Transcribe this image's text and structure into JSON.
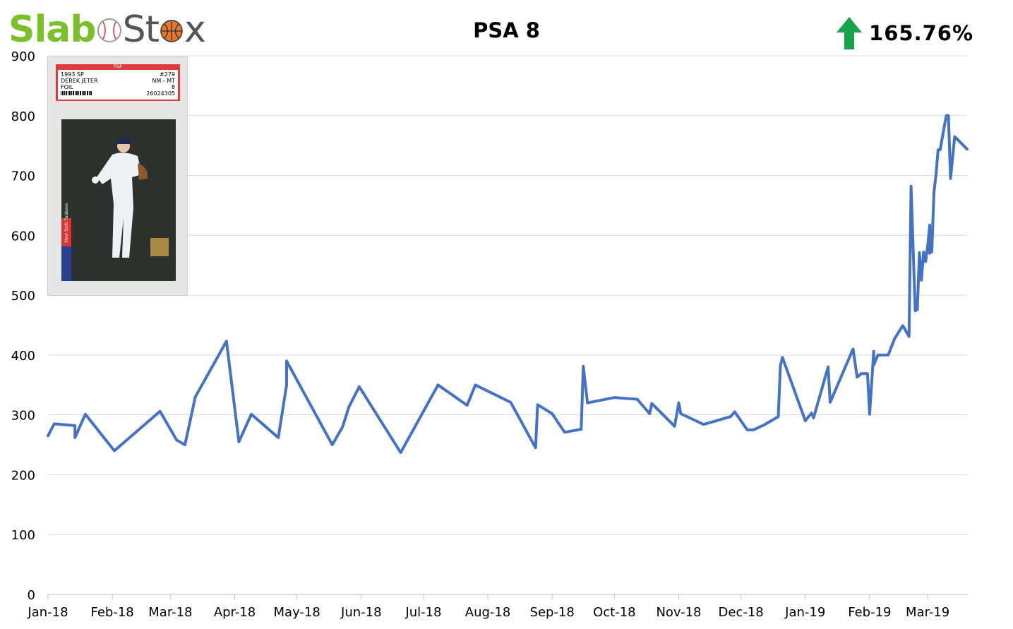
{
  "logo": {
    "part1": "Slab",
    "part2": "St",
    "part3": "x"
  },
  "title": "PSA 8",
  "change": {
    "value": "165.76%",
    "direction": "up",
    "color": "#1aa34a"
  },
  "card_image": {
    "icon": "graded-card-image",
    "label_header": "PSA",
    "label_left": [
      "1993 SP",
      "DEREK JETER",
      "FOIL"
    ],
    "label_right": [
      "#279",
      "NM - MT",
      "8",
      "26024305"
    ],
    "team_text": "New York Yankees"
  },
  "colors": {
    "line": "#4472c4",
    "grid": "#d9d9d9",
    "logo_green": "#7bbf2a",
    "logo_gray": "#555555",
    "arrow": "#1aa34a"
  },
  "chart_data": {
    "type": "line",
    "title": "PSA 8",
    "xlabel": "",
    "ylabel": "",
    "ylim": [
      0,
      900
    ],
    "yticks": [
      0,
      100,
      200,
      300,
      400,
      500,
      600,
      700,
      800,
      900
    ],
    "x_axis_type": "date",
    "x_range": [
      "2018-01-01",
      "2019-03-20"
    ],
    "xticks": [
      {
        "date": "2018-01-01",
        "label": "Jan-18"
      },
      {
        "date": "2018-02-01",
        "label": "Feb-18"
      },
      {
        "date": "2018-03-01",
        "label": "Mar-18"
      },
      {
        "date": "2018-04-01",
        "label": "Apr-18"
      },
      {
        "date": "2018-05-01",
        "label": "May-18"
      },
      {
        "date": "2018-06-01",
        "label": "Jun-18"
      },
      {
        "date": "2018-07-01",
        "label": "Jul-18"
      },
      {
        "date": "2018-08-01",
        "label": "Aug-18"
      },
      {
        "date": "2018-09-01",
        "label": "Sep-18"
      },
      {
        "date": "2018-10-01",
        "label": "Oct-18"
      },
      {
        "date": "2018-11-01",
        "label": "Nov-18"
      },
      {
        "date": "2018-12-01",
        "label": "Dec-18"
      },
      {
        "date": "2019-01-01",
        "label": "Jan-19"
      },
      {
        "date": "2019-02-01",
        "label": "Feb-19"
      },
      {
        "date": "2019-03-01",
        "label": "Mar-19"
      }
    ],
    "grid": true,
    "legend": "none",
    "series": [
      {
        "points": [
          [
            "2018-01-01",
            265
          ],
          [
            "2018-01-04",
            285
          ],
          [
            "2018-01-14",
            282
          ],
          [
            "2018-01-14",
            262
          ],
          [
            "2018-01-19",
            301
          ],
          [
            "2018-02-02",
            240
          ],
          [
            "2018-02-24",
            306
          ],
          [
            "2018-03-04",
            258
          ],
          [
            "2018-03-08",
            250
          ],
          [
            "2018-03-13",
            330
          ],
          [
            "2018-03-28",
            423
          ],
          [
            "2018-04-03",
            255
          ],
          [
            "2018-04-09",
            301
          ],
          [
            "2018-04-22",
            262
          ],
          [
            "2018-04-26",
            350
          ],
          [
            "2018-04-26",
            390
          ],
          [
            "2018-05-18",
            250
          ],
          [
            "2018-05-23",
            280
          ],
          [
            "2018-05-26",
            313
          ],
          [
            "2018-05-31",
            347
          ],
          [
            "2018-06-20",
            237
          ],
          [
            "2018-07-08",
            350
          ],
          [
            "2018-07-22",
            316
          ],
          [
            "2018-07-26",
            350
          ],
          [
            "2018-08-12",
            321
          ],
          [
            "2018-08-24",
            245
          ],
          [
            "2018-08-25",
            317
          ],
          [
            "2018-09-01",
            302
          ],
          [
            "2018-09-07",
            271
          ],
          [
            "2018-09-15",
            276
          ],
          [
            "2018-09-16",
            381
          ],
          [
            "2018-09-18",
            320
          ],
          [
            "2018-10-01",
            329
          ],
          [
            "2018-10-12",
            326
          ],
          [
            "2018-10-18",
            302
          ],
          [
            "2018-10-19",
            319
          ],
          [
            "2018-10-30",
            281
          ],
          [
            "2018-11-01",
            320
          ],
          [
            "2018-11-02",
            302
          ],
          [
            "2018-11-13",
            284
          ],
          [
            "2018-11-26",
            297
          ],
          [
            "2018-11-28",
            305
          ],
          [
            "2018-12-04",
            275
          ],
          [
            "2018-12-07",
            275
          ],
          [
            "2018-12-12",
            283
          ],
          [
            "2018-12-19",
            297
          ],
          [
            "2018-12-20",
            382
          ],
          [
            "2018-12-21",
            396
          ],
          [
            "2019-01-01",
            290
          ],
          [
            "2019-01-04",
            303
          ],
          [
            "2019-01-05",
            295
          ],
          [
            "2019-01-12",
            380
          ],
          [
            "2019-01-13",
            321
          ],
          [
            "2019-01-24",
            410
          ],
          [
            "2019-01-26",
            363
          ],
          [
            "2019-01-28",
            369
          ],
          [
            "2019-01-31",
            369
          ],
          [
            "2019-02-01",
            301
          ],
          [
            "2019-02-03",
            406
          ],
          [
            "2019-02-03",
            383
          ],
          [
            "2019-02-05",
            400
          ],
          [
            "2019-02-10",
            400
          ],
          [
            "2019-02-13",
            427
          ],
          [
            "2019-02-17",
            449
          ],
          [
            "2019-02-20",
            431
          ],
          [
            "2019-02-21",
            682
          ],
          [
            "2019-02-23",
            474
          ],
          [
            "2019-02-24",
            476
          ],
          [
            "2019-02-25",
            571
          ],
          [
            "2019-02-26",
            525
          ],
          [
            "2019-02-27",
            572
          ],
          [
            "2019-02-28",
            556
          ],
          [
            "2019-03-01",
            583
          ],
          [
            "2019-03-02",
            617
          ],
          [
            "2019-03-02",
            570
          ],
          [
            "2019-03-03",
            573
          ],
          [
            "2019-03-04",
            672
          ],
          [
            "2019-03-05",
            701
          ],
          [
            "2019-03-06",
            743
          ],
          [
            "2019-03-07",
            743
          ],
          [
            "2019-03-09",
            782
          ],
          [
            "2019-03-10",
            800
          ],
          [
            "2019-03-11",
            800
          ],
          [
            "2019-03-12",
            695
          ],
          [
            "2019-03-14",
            765
          ],
          [
            "2019-03-20",
            744
          ]
        ]
      }
    ]
  }
}
